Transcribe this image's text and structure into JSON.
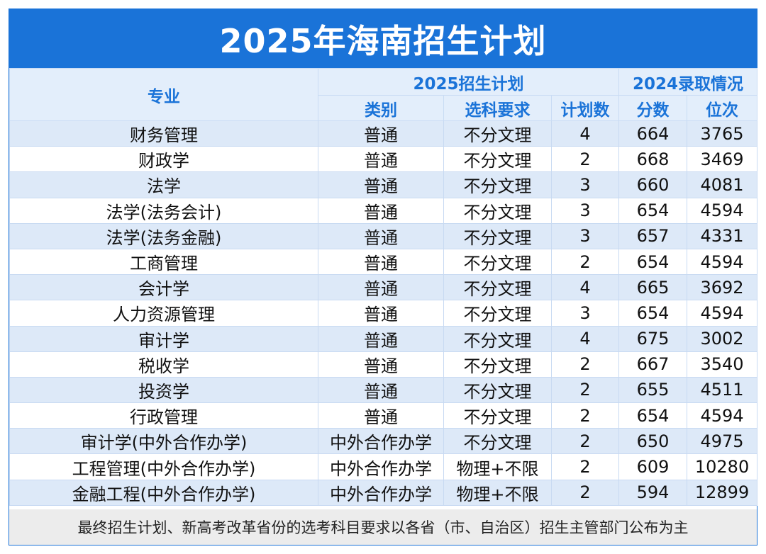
{
  "title": "2025年海南招生计划",
  "header": {
    "major": "专业",
    "plan_group": "2025招生计划",
    "admit_group": "2024录取情况",
    "category": "类别",
    "subject_req": "选科要求",
    "plan_count": "计划数",
    "score": "分数",
    "rank": "位次"
  },
  "rows": [
    {
      "major": "财务管理",
      "category": "普通",
      "subject_req": "不分文理",
      "plan_count": "4",
      "score": "664",
      "rank": "3765"
    },
    {
      "major": "财政学",
      "category": "普通",
      "subject_req": "不分文理",
      "plan_count": "2",
      "score": "668",
      "rank": "3469"
    },
    {
      "major": "法学",
      "category": "普通",
      "subject_req": "不分文理",
      "plan_count": "3",
      "score": "660",
      "rank": "4081"
    },
    {
      "major": "法学(法务会计)",
      "category": "普通",
      "subject_req": "不分文理",
      "plan_count": "3",
      "score": "654",
      "rank": "4594"
    },
    {
      "major": "法学(法务金融)",
      "category": "普通",
      "subject_req": "不分文理",
      "plan_count": "3",
      "score": "657",
      "rank": "4331"
    },
    {
      "major": "工商管理",
      "category": "普通",
      "subject_req": "不分文理",
      "plan_count": "2",
      "score": "654",
      "rank": "4594"
    },
    {
      "major": "会计学",
      "category": "普通",
      "subject_req": "不分文理",
      "plan_count": "4",
      "score": "665",
      "rank": "3692"
    },
    {
      "major": "人力资源管理",
      "category": "普通",
      "subject_req": "不分文理",
      "plan_count": "3",
      "score": "654",
      "rank": "4594"
    },
    {
      "major": "审计学",
      "category": "普通",
      "subject_req": "不分文理",
      "plan_count": "4",
      "score": "675",
      "rank": "3002"
    },
    {
      "major": "税收学",
      "category": "普通",
      "subject_req": "不分文理",
      "plan_count": "2",
      "score": "667",
      "rank": "3540"
    },
    {
      "major": "投资学",
      "category": "普通",
      "subject_req": "不分文理",
      "plan_count": "2",
      "score": "655",
      "rank": "4511"
    },
    {
      "major": "行政管理",
      "category": "普通",
      "subject_req": "不分文理",
      "plan_count": "2",
      "score": "654",
      "rank": "4594"
    },
    {
      "major": "审计学(中外合作办学)",
      "category": "中外合作办学",
      "subject_req": "不分文理",
      "plan_count": "2",
      "score": "650",
      "rank": "4975"
    },
    {
      "major": "工程管理(中外合作办学)",
      "category": "中外合作办学",
      "subject_req": "物理+不限",
      "plan_count": "2",
      "score": "609",
      "rank": "10280"
    },
    {
      "major": "金融工程(中外合作办学)",
      "category": "中外合作办学",
      "subject_req": "物理+不限",
      "plan_count": "2",
      "score": "594",
      "rank": "12899"
    }
  ],
  "footer": "最终招生计划、新高考改革省份的选考科目要求以各省（市、自治区）招生主管部门公布为主",
  "colors": {
    "accent": "#1a73d8",
    "stripe": "#dde9f8",
    "footer_bg": "#ececec"
  }
}
